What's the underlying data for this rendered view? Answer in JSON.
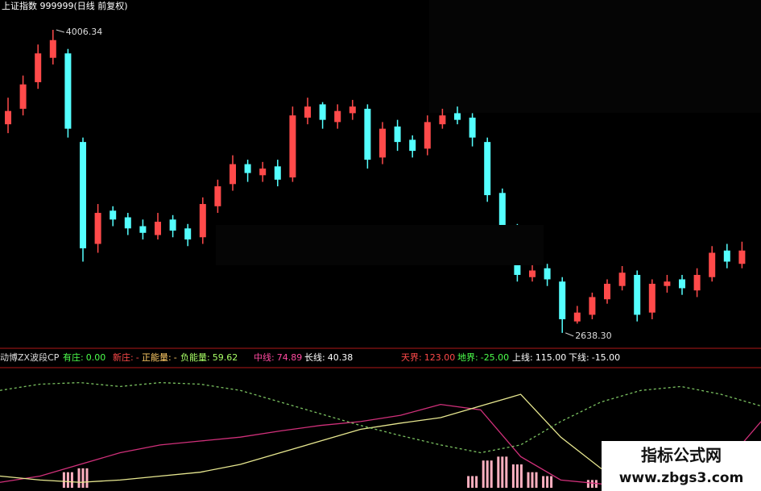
{
  "chart_data": {
    "type": "candlestick",
    "title": "上证指数 999999(日线 前复权)",
    "up_color": "#ff4a4a",
    "down_color": "#54ffff",
    "ylim": [
      2576,
      4141
    ],
    "open": [
      3580,
      3650,
      3770,
      3880,
      3900,
      3500,
      3040,
      3190,
      3160,
      3120,
      3080,
      3150,
      3110,
      3070,
      3210,
      3310,
      3400,
      3350,
      3390,
      3340,
      3610,
      3670,
      3590,
      3630,
      3650,
      3430,
      3570,
      3510,
      3470,
      3580,
      3630,
      3610,
      3500,
      3270,
      3110,
      2890,
      2930,
      2870,
      2690,
      2720,
      2790,
      2850,
      2900,
      2730,
      2850,
      2880,
      2830,
      2890,
      3010,
      2950
    ],
    "high": [
      3700,
      3800,
      3940,
      4006.34,
      3920,
      3520,
      3220,
      3210,
      3180,
      3150,
      3180,
      3170,
      3130,
      3250,
      3330,
      3440,
      3420,
      3410,
      3420,
      3660,
      3700,
      3680,
      3670,
      3690,
      3670,
      3590,
      3600,
      3530,
      3620,
      3650,
      3660,
      3630,
      3520,
      3290,
      3130,
      2960,
      2950,
      2890,
      2760,
      2820,
      2880,
      2940,
      2920,
      2880,
      2900,
      2900,
      2930,
      3030,
      3040,
      3050
    ],
    "low": [
      3540,
      3620,
      3740,
      3850,
      3520,
      2960,
      3000,
      3120,
      3080,
      3060,
      3060,
      3070,
      3030,
      3040,
      3180,
      3280,
      3320,
      3320,
      3300,
      3320,
      3580,
      3560,
      3560,
      3600,
      3380,
      3400,
      3460,
      3430,
      3440,
      3560,
      3580,
      3480,
      3230,
      3080,
      2870,
      2870,
      2850,
      2638.3,
      2680,
      2700,
      2770,
      2830,
      2690,
      2700,
      2820,
      2810,
      2800,
      2870,
      2930,
      2930
    ],
    "close": [
      3640,
      3760,
      3900,
      3960,
      3560,
      3020,
      3180,
      3150,
      3110,
      3090,
      3140,
      3100,
      3060,
      3220,
      3300,
      3400,
      3360,
      3380,
      3330,
      3620,
      3660,
      3600,
      3640,
      3660,
      3420,
      3560,
      3500,
      3460,
      3590,
      3620,
      3600,
      3520,
      3260,
      3120,
      2900,
      2920,
      2880,
      2700,
      2730,
      2800,
      2860,
      2910,
      2720,
      2860,
      2870,
      2840,
      2900,
      3000,
      2960,
      3010
    ],
    "extreme_labels": [
      "4006.34",
      "2638.30"
    ],
    "indicator_title": "动博ZX波段CP",
    "indicators": [
      {
        "label": "有庄:",
        "text": "0.00",
        "color": "#4cff4c"
      },
      {
        "label": "新庄:",
        "text": "-",
        "color": "#ff4a4a"
      },
      {
        "label": "正能量:",
        "text": "-",
        "color": "#ffcc66"
      },
      {
        "label": "负能量:",
        "text": "59.62",
        "color": "#a8ff66"
      },
      {
        "label": "中线:",
        "text": "74.89",
        "color": "#ff4aa0"
      },
      {
        "label": "长线:",
        "text": "40.38",
        "color": "#ffffff"
      },
      {
        "label": "天界:",
        "text": "123.00",
        "color": "#ff4a4a"
      },
      {
        "label": "地界:",
        "text": "-25.00",
        "color": "#4cff4c"
      },
      {
        "label": "上线:",
        "text": "115.00",
        "color": "#ffffff"
      },
      {
        "label": "下线:",
        "text": "-15.00",
        "color": "#ffffff"
      }
    ],
    "lower": {
      "ylim": [
        -25,
        123
      ],
      "series": [
        {
          "color": "#d0307a",
          "dash": false,
          "values": [
            -18,
            -10,
            5,
            20,
            30,
            35,
            40,
            48,
            55,
            60,
            68,
            82,
            75,
            15,
            -15,
            -20,
            -22,
            -15,
            0,
            60
          ]
        },
        {
          "color": "#e8e890",
          "dash": false,
          "values": [
            -10,
            -15,
            -18,
            -15,
            -10,
            -5,
            5,
            20,
            35,
            50,
            58,
            65,
            80,
            95,
            40,
            0,
            -20,
            -22,
            -20,
            -10
          ]
        },
        {
          "color": "#7ac060",
          "dash": true,
          "values": [
            100,
            108,
            110,
            105,
            110,
            108,
            100,
            85,
            70,
            55,
            42,
            30,
            20,
            30,
            60,
            85,
            100,
            105,
            95,
            80
          ]
        }
      ],
      "bar_color": "#ffb0c0",
      "bars": [
        null,
        null,
        null,
        null,
        -5,
        0,
        null,
        null,
        null,
        null,
        null,
        null,
        null,
        null,
        null,
        null,
        null,
        null,
        null,
        null,
        null,
        null,
        null,
        null,
        null,
        null,
        null,
        null,
        null,
        null,
        null,
        -10,
        10,
        15,
        5,
        -5,
        -10,
        null,
        null,
        -15,
        null,
        null,
        null,
        null,
        null,
        null,
        null,
        null,
        null,
        null
      ]
    },
    "watermark": [
      "指标公式网",
      "www.zbgs3.com"
    ]
  }
}
